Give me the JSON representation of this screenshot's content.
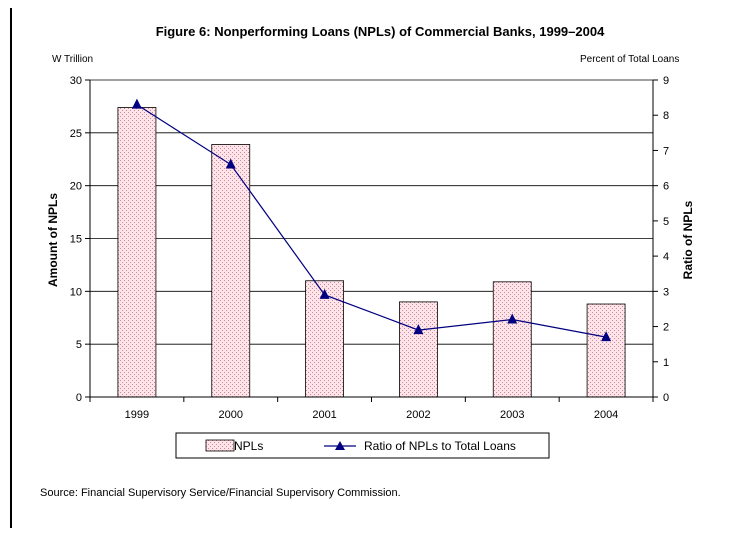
{
  "chart_data": {
    "type": "bar",
    "title": "Figure 6: Nonperforming Loans (NPLs) of Commercial Banks, 1999–2004",
    "categories": [
      "1999",
      "2000",
      "2001",
      "2002",
      "2003",
      "2004"
    ],
    "series": [
      {
        "name": "NPLs",
        "type": "bar",
        "axis": "left",
        "values": [
          27.4,
          23.9,
          11.0,
          9.0,
          10.9,
          8.8
        ]
      },
      {
        "name": "Ratio of NPLs to Total Loans",
        "type": "line",
        "axis": "right",
        "values": [
          8.3,
          6.6,
          2.9,
          1.9,
          2.2,
          1.7
        ]
      }
    ],
    "ylabel": "Amount of NPLs",
    "yunit": "W Trillion",
    "ylim": [
      0,
      30
    ],
    "yticks": [
      "0",
      "5",
      "10",
      "15",
      "20",
      "25",
      "30"
    ],
    "y2label": "Ratio of NPLs",
    "y2unit": "Percent of Total Loans",
    "y2lim": [
      0,
      9
    ],
    "y2ticks": [
      "0",
      "1",
      "2",
      "3",
      "4",
      "5",
      "6",
      "7",
      "8",
      "9"
    ],
    "grid": true,
    "legend_position": "bottom",
    "colors": {
      "bar_fill": "#ffe4ea",
      "bar_dot": "#c98a9c",
      "line": "#000080",
      "grid": "#000000"
    }
  },
  "source_note": "Source: Financial Supervisory Service/Financial Supervisory Commission."
}
